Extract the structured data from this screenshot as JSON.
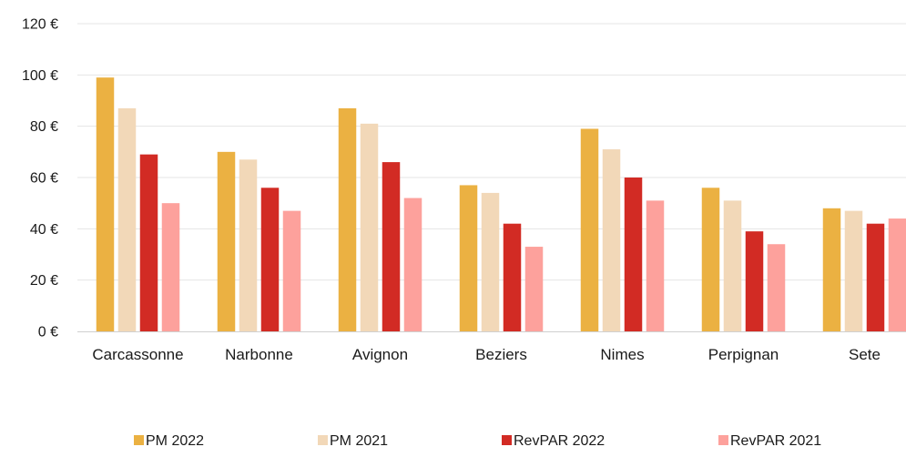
{
  "chart_data": {
    "type": "bar",
    "title": "",
    "xlabel": "",
    "ylabel": "",
    "ylim": [
      0,
      120
    ],
    "yticks": [
      0,
      20,
      40,
      60,
      80,
      100,
      120
    ],
    "ytick_labels": [
      "0 €",
      "20 €",
      "40 €",
      "60 €",
      "80 €",
      "100 €",
      "120 €"
    ],
    "grid": "horizontal",
    "legend_position": "bottom",
    "categories": [
      "Carcassonne",
      "Narbonne",
      "Avignon",
      "Beziers",
      "Nimes",
      "Perpignan",
      "Sete"
    ],
    "series": [
      {
        "name": "PM 2022",
        "color": "#EBB142",
        "values": [
          99,
          70,
          87,
          57,
          79,
          56,
          48
        ]
      },
      {
        "name": "PM 2021",
        "color": "#F2D8B8",
        "values": [
          87,
          67,
          81,
          54,
          71,
          51,
          47
        ]
      },
      {
        "name": "RevPAR 2022",
        "color": "#D22B24",
        "values": [
          69,
          56,
          66,
          42,
          60,
          39,
          42
        ]
      },
      {
        "name": "RevPAR 2021",
        "color": "#FDA19C",
        "values": [
          50,
          47,
          52,
          33,
          51,
          34,
          44
        ]
      }
    ]
  }
}
